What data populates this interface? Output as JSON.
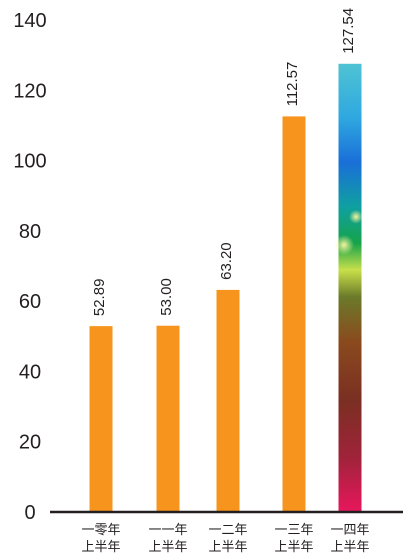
{
  "chart_data": {
    "type": "bar",
    "categories": [
      [
        "一零年",
        "上半年"
      ],
      [
        "一一年",
        "上半年"
      ],
      [
        "一二年",
        "上半年"
      ],
      [
        "一三年",
        "上半年"
      ],
      [
        "一四年",
        "上半年"
      ]
    ],
    "values": [
      52.89,
      53.0,
      63.2,
      112.57,
      127.54
    ],
    "value_labels": [
      "52.89",
      "53.00",
      "63.20",
      "112.57",
      "127.54"
    ],
    "yticks": [
      0,
      20,
      40,
      60,
      80,
      100,
      120,
      140
    ],
    "ylim": [
      0,
      140
    ],
    "title": "",
    "xlabel": "",
    "ylabel": "",
    "grid": false,
    "bar_color": "#f7941d",
    "axis_color": "#231f20",
    "highlight_last_bar": true
  }
}
